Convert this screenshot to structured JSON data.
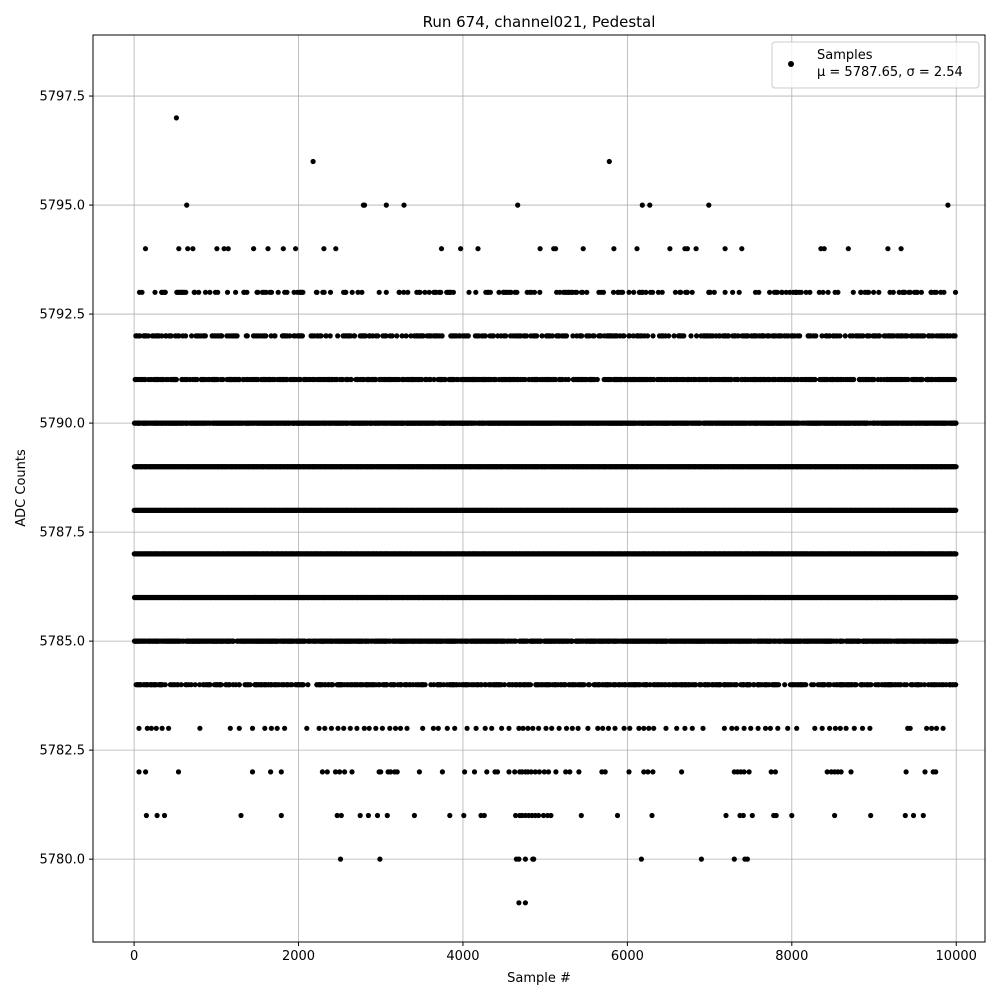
{
  "chart_data": {
    "type": "scatter",
    "title": "Run 674, channel021, Pedestal",
    "xlabel": "Sample #",
    "ylabel": "ADC Counts",
    "xlim": [
      -500,
      10350
    ],
    "ylim": [
      5778.1,
      5798.9
    ],
    "xticks": [
      0,
      2000,
      4000,
      6000,
      8000,
      10000
    ],
    "xtick_labels": [
      "0",
      "2000",
      "4000",
      "6000",
      "8000",
      "10000"
    ],
    "yticks": [
      5780.0,
      5782.5,
      5785.0,
      5787.5,
      5790.0,
      5792.5,
      5795.0,
      5797.5
    ],
    "ytick_labels": [
      "5780.0",
      "5782.5",
      "5785.0",
      "5787.5",
      "5790.0",
      "5792.5",
      "5795.0",
      "5797.5"
    ],
    "grid": true,
    "legend": {
      "placement": "top-right",
      "title": "Samples",
      "stats": "μ = 5787.65, σ = 2.54"
    },
    "marker_color": "#000000",
    "n_samples": 10000,
    "mean": 5787.65,
    "std": 2.54,
    "distribution": [
      {
        "y": 5779,
        "x": [
          4680,
          4760
        ]
      },
      {
        "y": 5780,
        "x": [
          2510,
          2990,
          4650,
          4680,
          4760,
          4850,
          4860,
          6170,
          6900,
          7300,
          7430,
          7460
        ]
      },
      {
        "y": 5781,
        "x": [
          150,
          280,
          370,
          1300,
          1790,
          2470,
          2520,
          2750,
          2850,
          2960,
          3080,
          3410,
          3840,
          4010,
          4220,
          4260,
          4640,
          4690,
          4720,
          4760,
          4800,
          4840,
          4880,
          4920,
          4980,
          5030,
          5070,
          5440,
          5880,
          6300,
          7200,
          7370,
          7410,
          7520,
          7780,
          7810,
          8000,
          8520,
          8960,
          9380,
          9480,
          9600
        ]
      },
      {
        "y": 5782,
        "x": [
          60,
          140,
          540,
          1440,
          1660,
          1790,
          2290,
          2350,
          2450,
          2500,
          2560,
          2650,
          2980,
          3000,
          3090,
          3120,
          3170,
          3200,
          3470,
          3750,
          4020,
          4140,
          4290,
          4390,
          4420,
          4560,
          4630,
          4690,
          4720,
          4760,
          4790,
          4830,
          4880,
          4930,
          4990,
          5040,
          5130,
          5250,
          5300,
          5410,
          5690,
          5730,
          6020,
          6200,
          6250,
          6310,
          6660,
          7300,
          7340,
          7380,
          7420,
          7480,
          7750,
          7800,
          8430,
          8480,
          8520,
          8560,
          8600,
          8720,
          9390,
          9620,
          9720,
          9750
        ]
      },
      {
        "y": 5783,
        "x": [
          60,
          160,
          210,
          270,
          340,
          420,
          800,
          1170,
          1280,
          1440,
          1590,
          1670,
          1740,
          1830,
          2100,
          2250,
          2320,
          2400,
          2480,
          2550,
          2630,
          2710,
          2800,
          2860,
          2940,
          3020,
          3110,
          3180,
          3240,
          3320,
          3510,
          3640,
          3700,
          3810,
          3900,
          4050,
          4160,
          4270,
          4350,
          4470,
          4560,
          4680,
          4730,
          4790,
          4850,
          4920,
          5010,
          5080,
          5170,
          5260,
          5330,
          5400,
          5520,
          5640,
          5700,
          5770,
          5850,
          5960,
          6030,
          6140,
          6200,
          6260,
          6320,
          6470,
          6600,
          6700,
          6790,
          6920,
          7180,
          7270,
          7330,
          7420,
          7500,
          7590,
          7680,
          7740,
          7830,
          7950,
          8060,
          8280,
          8370,
          8460,
          8530,
          8590,
          8660,
          8760,
          8860,
          8950,
          9410,
          9440,
          9640,
          9700,
          9760,
          9840
        ]
      }
    ]
  }
}
